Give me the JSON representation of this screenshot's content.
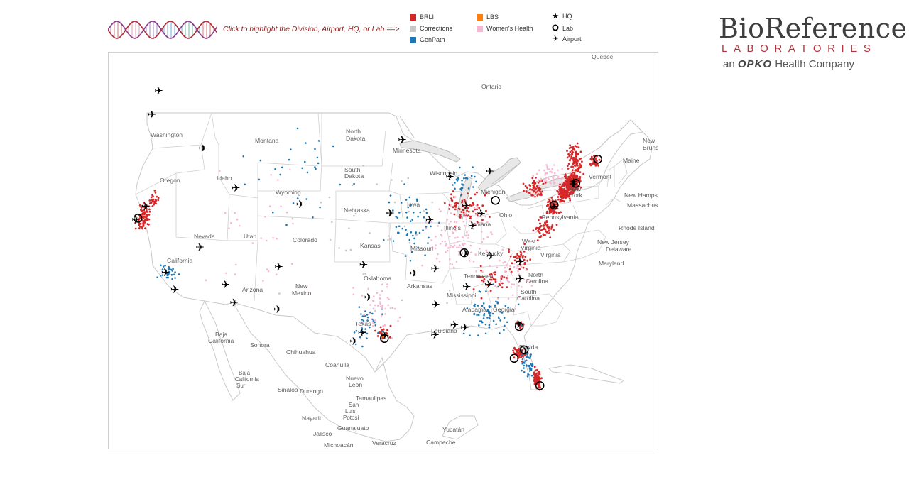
{
  "instruction": "Click to highlight the Division, Airport, HQ, or Lab ==>",
  "legend": {
    "divisions": [
      {
        "label": "BRLI",
        "color": "#d62728"
      },
      {
        "label": "Corrections",
        "color": "#c7c7c7"
      },
      {
        "label": "GenPath",
        "color": "#1f77b4"
      },
      {
        "label": "LBS",
        "color": "#ff7f0e"
      },
      {
        "label": "Women's Health",
        "color": "#f7b6d2"
      }
    ],
    "symbols": [
      {
        "label": "HQ",
        "icon": "star-icon"
      },
      {
        "label": "Lab",
        "icon": "circle-icon"
      },
      {
        "label": "Airport",
        "icon": "airplane-icon"
      }
    ]
  },
  "logo": {
    "title": "BioReference",
    "subtitle": "LABORATORIES",
    "tagline_prefix": "an",
    "tagline_brand": "OPKO",
    "tagline_suffix": "Health Company"
  },
  "map": {
    "states": [
      "Washington",
      "Oregon",
      "Idaho",
      "Montana",
      "Wyoming",
      "North Dakota",
      "South Dakota",
      "Nebraska",
      "Kansas",
      "Minnesota",
      "Iowa",
      "Missouri",
      "Wisconsin",
      "Michigan",
      "Illinois",
      "Indiana",
      "Ohio",
      "Kentucky",
      "Tennessee",
      "Nevada",
      "California",
      "Utah",
      "Colorado",
      "Arizona",
      "New Mexico",
      "Texas",
      "Oklahoma",
      "Arkansas",
      "Louisiana",
      "Mississippi",
      "Alabama",
      "Georgia",
      "Florida",
      "South Carolina",
      "North Carolina",
      "Virginia",
      "West Virginia",
      "Maryland",
      "Delaware",
      "New Jersey",
      "Pennsylvania",
      "New York",
      "Vermont",
      "New Hampshire",
      "Maine",
      "Massachusetts",
      "Rhode Island"
    ],
    "regions": [
      "Ontario",
      "Quebec",
      "Baja California",
      "Sonora",
      "Chihuahua",
      "Coahuila",
      "Nuevo León",
      "Tamaulipas",
      "Baja California Sur",
      "Sinaloa",
      "Durango",
      "San Luis Potosí",
      "Nayarit",
      "Jalisco",
      "Guanajuato",
      "Michoacán",
      "Veracruz",
      "Yucatán",
      "Campeche",
      "Brunswick"
    ],
    "airports": [
      {
        "city": "Seattle",
        "lon": -122.3,
        "lat": 47.45
      },
      {
        "city": "Portland",
        "lon": -122.6,
        "lat": 45.6
      },
      {
        "city": "Boise",
        "lon": -116.2,
        "lat": 43.56
      },
      {
        "city": "Salt Lake City",
        "lon": -111.98,
        "lat": 40.79
      },
      {
        "city": "Denver",
        "lon": -104.67,
        "lat": 39.86
      },
      {
        "city": "San Francisco",
        "lon": -122.38,
        "lat": 37.62
      },
      {
        "city": "Sacramento",
        "lon": -121.59,
        "lat": 38.7
      },
      {
        "city": "Las Vegas",
        "lon": -115.15,
        "lat": 36.08
      },
      {
        "city": "Los Angeles",
        "lon": -118.41,
        "lat": 33.94
      },
      {
        "city": "San Diego",
        "lon": -117.19,
        "lat": 32.73
      },
      {
        "city": "Phoenix",
        "lon": -112.01,
        "lat": 33.43
      },
      {
        "city": "Tucson",
        "lon": -110.94,
        "lat": 32.12
      },
      {
        "city": "Albuquerque",
        "lon": -106.6,
        "lat": 35.04
      },
      {
        "city": "El Paso",
        "lon": -106.38,
        "lat": 31.81
      },
      {
        "city": "Oklahoma City",
        "lon": -97.6,
        "lat": 35.39
      },
      {
        "city": "Dallas",
        "lon": -97.04,
        "lat": 32.9
      },
      {
        "city": "Austin",
        "lon": -97.67,
        "lat": 30.19
      },
      {
        "city": "San Antonio",
        "lon": -98.47,
        "lat": 29.53
      },
      {
        "city": "Houston",
        "lon": -95.34,
        "lat": 29.98
      },
      {
        "city": "Kansas City",
        "lon": -94.71,
        "lat": 39.3
      },
      {
        "city": "Minneapolis",
        "lon": -93.22,
        "lat": 44.88
      },
      {
        "city": "St. Louis",
        "lon": -90.37,
        "lat": 38.75
      },
      {
        "city": "Little Rock",
        "lon": -92.22,
        "lat": 34.73
      },
      {
        "city": "Memphis",
        "lon": -89.98,
        "lat": 35.04
      },
      {
        "city": "Jackson",
        "lon": -90.08,
        "lat": 32.31
      },
      {
        "city": "New Orleans",
        "lon": -90.26,
        "lat": 29.99
      },
      {
        "city": "Chicago",
        "lon": -87.9,
        "lat": 41.98
      },
      {
        "city": "Indianapolis",
        "lon": -86.29,
        "lat": 39.72
      },
      {
        "city": "Louisville",
        "lon": -85.74,
        "lat": 38.17
      },
      {
        "city": "Nashville",
        "lon": -86.68,
        "lat": 36.12
      },
      {
        "city": "Birmingham",
        "lon": -86.75,
        "lat": 33.56
      },
      {
        "city": "Atlanta",
        "lon": -84.43,
        "lat": 33.64
      },
      {
        "city": "Detroit",
        "lon": -83.35,
        "lat": 42.21
      },
      {
        "city": "Cincinnati",
        "lon": -84.67,
        "lat": 39.05
      },
      {
        "city": "Charlotte",
        "lon": -80.94,
        "lat": 35.21
      },
      {
        "city": "Knoxville",
        "lon": -83.99,
        "lat": 35.81
      },
      {
        "city": "Columbia",
        "lon": -81.12,
        "lat": 33.94
      },
      {
        "city": "Mobile",
        "lon": -88.24,
        "lat": 30.69
      },
      {
        "city": "Pensacola",
        "lon": -87.19,
        "lat": 30.47
      },
      {
        "city": "Jacksonville",
        "lon": -81.69,
        "lat": 30.49
      },
      {
        "city": "Orlando",
        "lon": -81.31,
        "lat": 28.43
      },
      {
        "city": "Newark",
        "lon": -74.17,
        "lat": 40.69
      },
      {
        "city": "Baltimore",
        "lon": -76.67,
        "lat": 39.18
      }
    ],
    "labs": [
      {
        "city": "San Francisco",
        "lon": -122.2,
        "lat": 37.75
      },
      {
        "city": "Houston",
        "lon": -95.4,
        "lat": 29.78
      },
      {
        "city": "Nashville",
        "lon": -86.8,
        "lat": 36.16
      },
      {
        "city": "Columbus",
        "lon": -83.0,
        "lat": 40.0
      },
      {
        "city": "Baltimore",
        "lon": -76.6,
        "lat": 39.3
      },
      {
        "city": "New York",
        "lon": -73.9,
        "lat": 40.75
      },
      {
        "city": "Boston",
        "lon": -71.06,
        "lat": 42.36
      },
      {
        "city": "Jacksonville",
        "lon": -81.66,
        "lat": 30.33
      },
      {
        "city": "Orlando",
        "lon": -81.38,
        "lat": 28.54
      },
      {
        "city": "Tampa",
        "lon": -82.46,
        "lat": 27.95
      },
      {
        "city": "Miami",
        "lon": -80.19,
        "lat": 25.76
      }
    ],
    "hq": [
      {
        "city": "Elmwood Park, NJ",
        "lon": -74.12,
        "lat": 40.9
      }
    ],
    "site_clusters": [
      {
        "division": "BRLI",
        "lon": -74.3,
        "lat": 40.8,
        "spread": [
          1.2,
          0.9
        ],
        "count": 260
      },
      {
        "division": "BRLI",
        "lon": -75.4,
        "lat": 40.1,
        "spread": [
          1.0,
          0.9
        ],
        "count": 120
      },
      {
        "division": "BRLI",
        "lon": -76.8,
        "lat": 39.1,
        "spread": [
          0.9,
          0.9
        ],
        "count": 90
      },
      {
        "division": "BRLI",
        "lon": -73.6,
        "lat": 42.6,
        "spread": [
          1.2,
          1.6
        ],
        "count": 90
      },
      {
        "division": "BRLI",
        "lon": -71.5,
        "lat": 42.2,
        "spread": [
          0.7,
          0.5
        ],
        "count": 50
      },
      {
        "division": "BRLI",
        "lon": -78.5,
        "lat": 40.7,
        "spread": [
          1.8,
          1.2
        ],
        "count": 60
      },
      {
        "division": "BRLI",
        "lon": -78.0,
        "lat": 37.6,
        "spread": [
          1.8,
          1.2
        ],
        "count": 55
      },
      {
        "division": "BRLI",
        "lon": -80.4,
        "lat": 26.3,
        "spread": [
          0.5,
          1.0
        ],
        "count": 90
      },
      {
        "division": "BRLI",
        "lon": -81.9,
        "lat": 28.3,
        "spread": [
          0.8,
          0.7
        ],
        "count": 45
      },
      {
        "division": "BRLI",
        "lon": -81.6,
        "lat": 30.4,
        "spread": [
          0.5,
          0.4
        ],
        "count": 20
      },
      {
        "division": "BRLI",
        "lon": -121.6,
        "lat": 37.9,
        "spread": [
          0.9,
          1.4
        ],
        "count": 85
      },
      {
        "division": "BRLI",
        "lon": -120.8,
        "lat": 39.3,
        "spread": [
          0.7,
          0.9
        ],
        "count": 25
      },
      {
        "division": "BRLI",
        "lon": -86.0,
        "lat": 39.6,
        "spread": [
          3.8,
          1.7
        ],
        "count": 70
      },
      {
        "division": "BRLI",
        "lon": -84.0,
        "lat": 34.0,
        "spread": [
          2.8,
          1.8
        ],
        "count": 40
      },
      {
        "division": "BRLI",
        "lon": -80.8,
        "lat": 35.6,
        "spread": [
          1.8,
          1.2
        ],
        "count": 35
      },
      {
        "division": "BRLI",
        "lon": -95.6,
        "lat": 30.2,
        "spread": [
          1.2,
          0.8
        ],
        "count": 20
      },
      {
        "division": "GenPath",
        "lon": -84.5,
        "lat": 31.5,
        "spread": [
          4.0,
          3.0
        ],
        "count": 70
      },
      {
        "division": "GenPath",
        "lon": -81.2,
        "lat": 27.4,
        "spread": [
          0.9,
          1.8
        ],
        "count": 45
      },
      {
        "division": "GenPath",
        "lon": -92.5,
        "lat": 38.5,
        "spread": [
          4.5,
          3.5
        ],
        "count": 55
      },
      {
        "division": "GenPath",
        "lon": -97.0,
        "lat": 31.0,
        "spread": [
          2.5,
          2.5
        ],
        "count": 35
      },
      {
        "division": "GenPath",
        "lon": -118.0,
        "lat": 34.0,
        "spread": [
          1.3,
          0.9
        ],
        "count": 30
      },
      {
        "division": "GenPath",
        "lon": -86.5,
        "lat": 41.5,
        "spread": [
          2.5,
          1.5
        ],
        "count": 30
      },
      {
        "division": "GenPath",
        "lon": -105.0,
        "lat": 42.0,
        "spread": [
          10.0,
          5.0
        ],
        "count": 30
      },
      {
        "division": "Women's Health",
        "lon": -87.5,
        "lat": 37.5,
        "spread": [
          5.5,
          4.0
        ],
        "count": 110
      },
      {
        "division": "Women's Health",
        "lon": -82.0,
        "lat": 34.0,
        "spread": [
          3.0,
          2.5
        ],
        "count": 45
      },
      {
        "division": "Women's Health",
        "lon": -96.0,
        "lat": 32.0,
        "spread": [
          3.0,
          3.0
        ],
        "count": 45
      },
      {
        "division": "Women's Health",
        "lon": -76.5,
        "lat": 41.5,
        "spread": [
          2.5,
          1.5
        ],
        "count": 45
      },
      {
        "division": "Women's Health",
        "lon": -110.0,
        "lat": 38.0,
        "spread": [
          9.0,
          7.0
        ],
        "count": 30
      },
      {
        "division": "Corrections",
        "lon": -95.0,
        "lat": 38.0,
        "spread": [
          15.0,
          8.0
        ],
        "count": 40
      },
      {
        "division": "LBS",
        "lon": -95.5,
        "lat": 29.9,
        "spread": [
          0.5,
          0.4
        ],
        "count": 6
      }
    ]
  }
}
